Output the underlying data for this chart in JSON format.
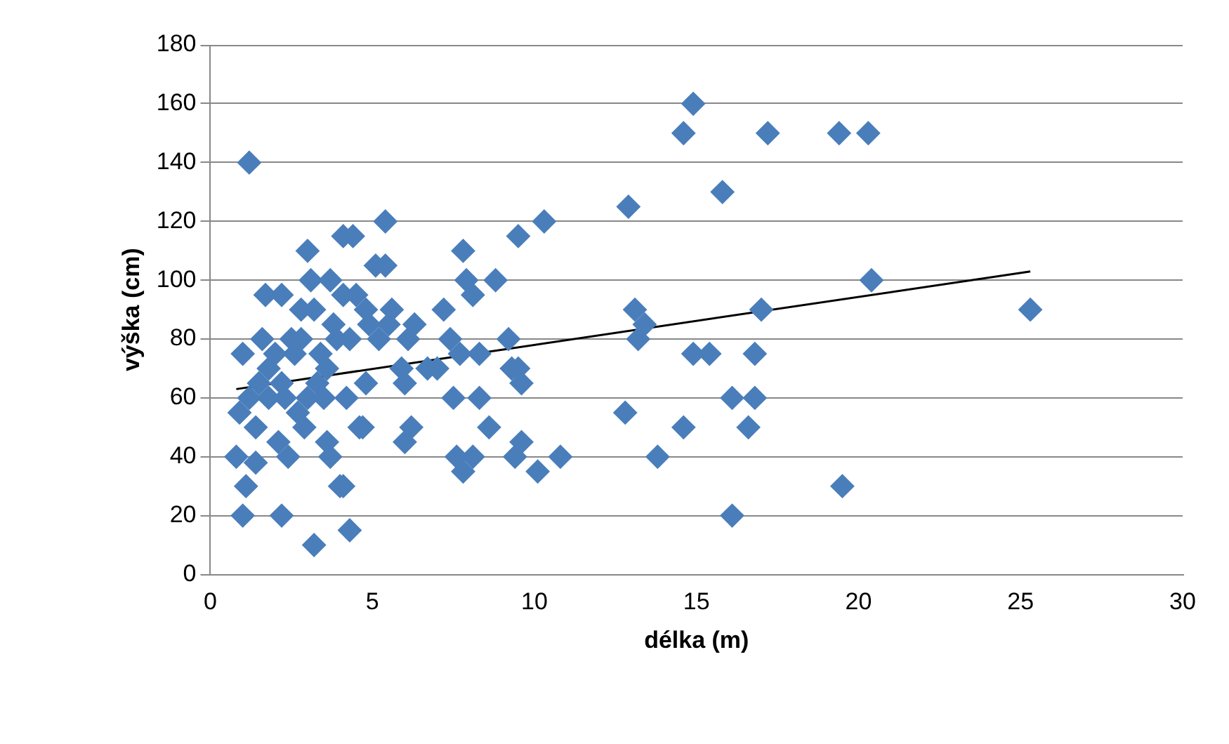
{
  "chart_data": {
    "type": "scatter",
    "xlabel": "délka (m)",
    "ylabel": "výška (cm)",
    "xlim": [
      0,
      30
    ],
    "xticks": [
      0,
      5,
      10,
      15,
      20,
      25,
      30
    ],
    "ylim": [
      0,
      180
    ],
    "yticks": [
      0,
      20,
      40,
      60,
      80,
      100,
      120,
      140,
      160,
      180
    ],
    "grid": "y",
    "legend": false,
    "marker": "diamond",
    "series": [
      {
        "color": "#4a7ebb",
        "x": [
          12.9,
          13.1,
          13.2,
          13.4,
          12.8,
          13.8,
          14.6,
          14.9,
          14.6,
          14.9,
          15.4,
          15.8,
          16.1,
          16.1,
          16.6,
          16.8,
          16.8,
          17,
          17.2,
          19.4,
          20.3,
          20.4,
          19.5,
          25.3,
          10.3,
          10.8,
          10.1,
          9.5,
          9.6,
          9.6,
          9.5,
          9.4,
          9.2,
          9.3,
          7.8,
          7.9,
          8.1,
          8.3,
          8.8,
          7.2,
          7.4,
          7,
          6.7,
          6.3,
          6.1,
          6.2,
          6,
          6,
          5.9,
          7.5,
          7.6,
          7.8,
          8.1,
          8.3,
          8.6,
          7.7,
          5.4,
          5.4,
          5.1,
          5.6,
          5.5,
          5.2,
          1.2,
          1,
          0.8,
          1.1,
          1,
          0.9,
          1.2,
          1.4,
          1.4,
          1.5,
          1.7,
          2.2,
          1.6,
          1.8,
          2.1,
          2.2,
          2.4,
          2.3,
          2.6,
          2.7,
          2.9,
          3,
          3.1,
          2.8,
          3.2,
          3.3,
          3.5,
          3.6,
          3.7,
          3.8,
          3.6,
          3.7,
          4,
          4.1,
          4.1,
          4.4,
          4.1,
          4.3,
          4.3,
          4.5,
          4.6,
          4.8,
          4.8,
          4.7,
          4.9,
          3.9,
          2.5,
          2,
          2.8,
          3.2,
          1.8,
          2.2,
          3.4,
          4.2,
          3
        ],
        "values": [
          125,
          90,
          80,
          85,
          55,
          40,
          150,
          160,
          50,
          75,
          75,
          130,
          60,
          20,
          50,
          75,
          60,
          90,
          150,
          150,
          150,
          100,
          30,
          90,
          120,
          40,
          35,
          115,
          45,
          65,
          70,
          40,
          80,
          70,
          110,
          100,
          95,
          75,
          100,
          90,
          80,
          70,
          70,
          85,
          80,
          50,
          45,
          65,
          70,
          60,
          40,
          35,
          40,
          60,
          50,
          75,
          120,
          105,
          105,
          90,
          85,
          80,
          140,
          75,
          40,
          30,
          20,
          55,
          60,
          50,
          38,
          65,
          95,
          95,
          80,
          70,
          45,
          20,
          40,
          60,
          75,
          55,
          50,
          110,
          100,
          90,
          10,
          65,
          60,
          70,
          100,
          85,
          45,
          40,
          30,
          30,
          115,
          115,
          95,
          80,
          15,
          95,
          50,
          65,
          90,
          50,
          85,
          80,
          80,
          75,
          80,
          90,
          60,
          65,
          75,
          60,
          60
        ]
      },
      {
        "type": "line",
        "color": "#000000",
        "marker": "none",
        "x": [
          0.8,
          25.3
        ],
        "values": [
          63,
          103
        ]
      }
    ]
  }
}
